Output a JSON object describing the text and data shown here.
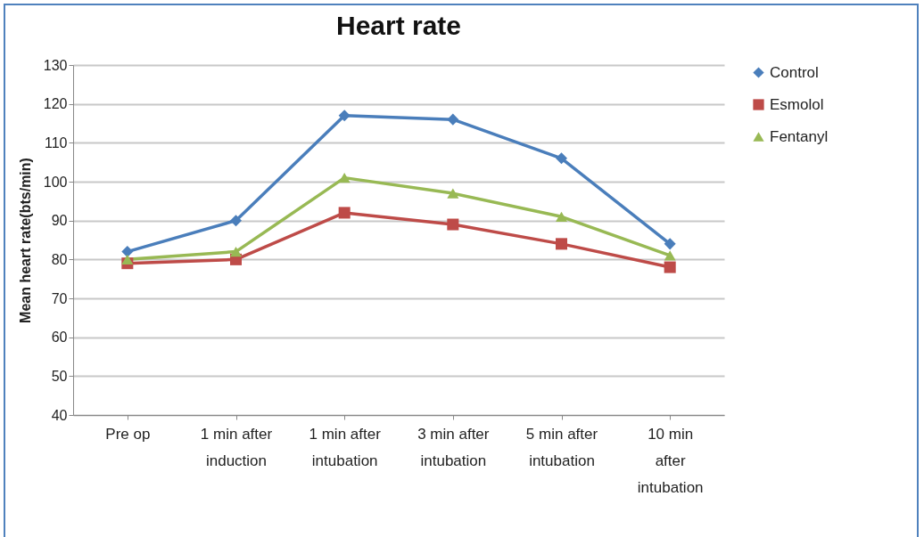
{
  "chart_data": {
    "type": "line",
    "title": "Heart rate",
    "ylabel": "Mean heart rate(bts/min)",
    "categories": [
      "Pre op",
      "1 min after induction",
      "1 min after intubation",
      "3 min after intubation",
      "5 min after intubation",
      "10 min after intubation"
    ],
    "series": [
      {
        "name": "Control",
        "color": "#4a7ebb",
        "marker": "diamond",
        "values": [
          82,
          90,
          117,
          116,
          106,
          84
        ]
      },
      {
        "name": "Esmolol",
        "color": "#be4b48",
        "marker": "square",
        "values": [
          79,
          80,
          92,
          89,
          84,
          78
        ]
      },
      {
        "name": "Fentanyl",
        "color": "#98b954",
        "marker": "triangle",
        "values": [
          80,
          82,
          101,
          97,
          91,
          81
        ]
      }
    ],
    "ylim": [
      40,
      130
    ],
    "yticks": [
      40,
      50,
      60,
      70,
      80,
      90,
      100,
      110,
      120,
      130
    ],
    "grid": "y",
    "legend": "right",
    "line_style": "solid"
  }
}
